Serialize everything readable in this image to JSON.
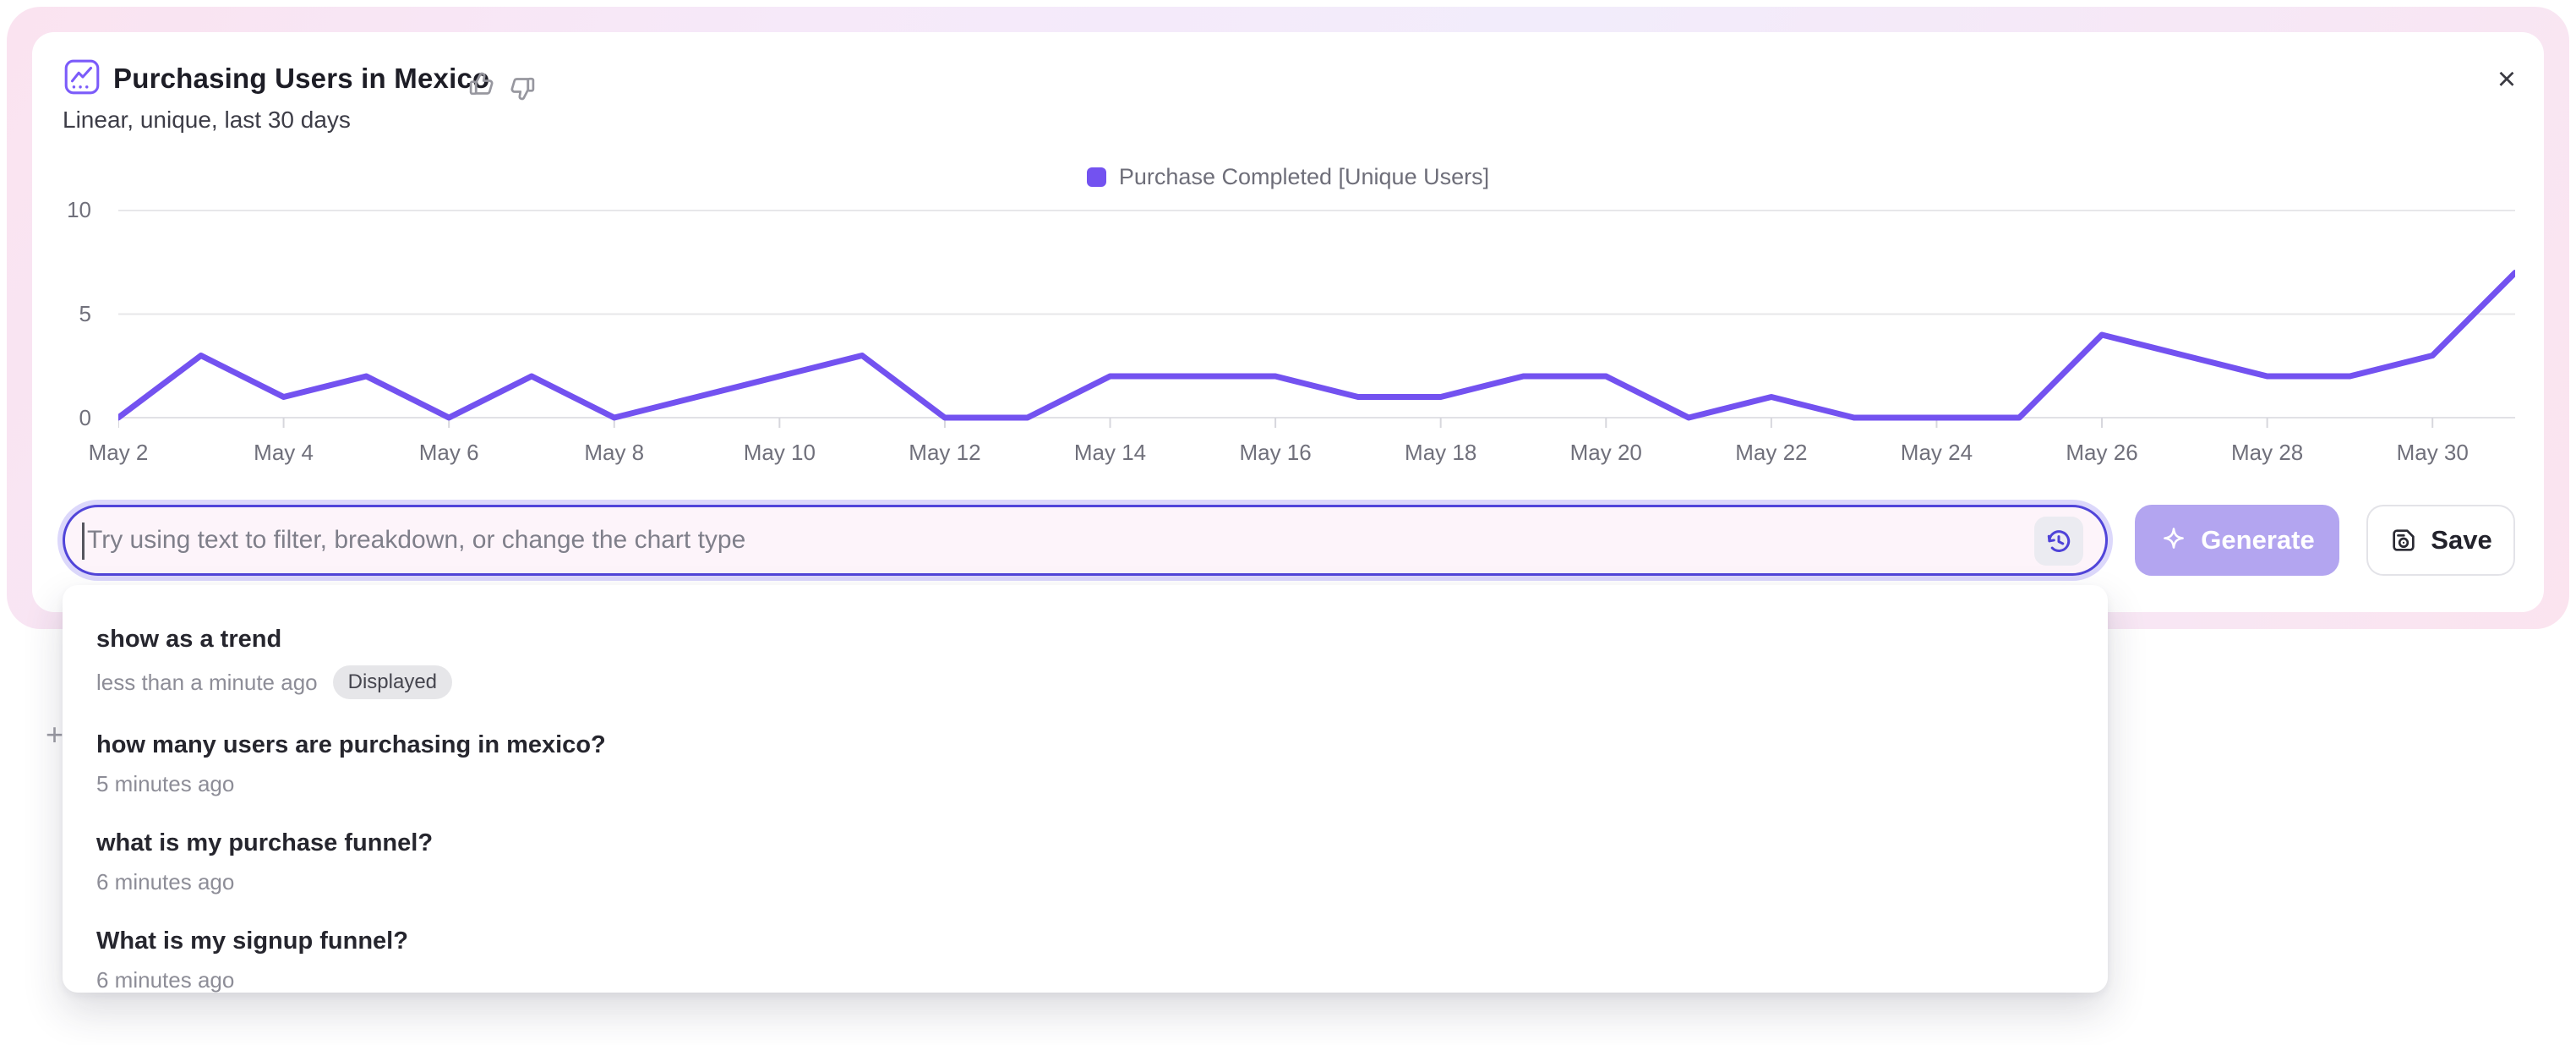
{
  "header": {
    "title": "Purchasing Users in Mexico",
    "subtitle": "Linear, unique, last 30 days",
    "close_label": "×"
  },
  "icons": {
    "header_icon": "line-chart-icon",
    "feedback_positive": "thumbs-up-icon",
    "feedback_negative": "thumbs-down-icon",
    "input_right": "history-icon",
    "generate": "sparkle-icon",
    "save": "save-disk-icon",
    "close": "close-icon"
  },
  "colors": {
    "series": "#7352f0",
    "accent_border": "#5145d9",
    "generate_bg": "#b3a5f0",
    "glow_pink": "#fae3f0",
    "glow_lavender": "#f2ecfb"
  },
  "chart_data": {
    "type": "line",
    "title": "Purchasing Users in Mexico",
    "legend": [
      "Purchase Completed [Unique Users]"
    ],
    "legend_position": "top",
    "grid": true,
    "x": [
      "May 2",
      "May 3",
      "May 4",
      "May 5",
      "May 6",
      "May 7",
      "May 8",
      "May 9",
      "May 10",
      "May 11",
      "May 12",
      "May 13",
      "May 14",
      "May 15",
      "May 16",
      "May 17",
      "May 18",
      "May 19",
      "May 20",
      "May 21",
      "May 22",
      "May 23",
      "May 24",
      "May 25",
      "May 26",
      "May 27",
      "May 28",
      "May 29",
      "May 30",
      "May 31"
    ],
    "series": [
      {
        "name": "Purchase Completed [Unique Users]",
        "values": [
          0,
          3,
          1,
          2,
          0,
          2,
          0,
          1,
          2,
          3,
          0,
          0,
          2,
          2,
          2,
          1,
          1,
          2,
          2,
          0,
          1,
          0,
          0,
          0,
          4,
          3,
          2,
          2,
          3,
          7
        ]
      }
    ],
    "x_tick_labels": [
      "May 2",
      "May 4",
      "May 6",
      "May 8",
      "May 10",
      "May 12",
      "May 14",
      "May 16",
      "May 18",
      "May 20",
      "May 22",
      "May 24",
      "May 26",
      "May 28",
      "May 30"
    ],
    "y_ticks": [
      "0",
      "5",
      "10"
    ],
    "ylim": [
      0,
      10
    ],
    "xlabel": "",
    "ylabel": ""
  },
  "input": {
    "placeholder": "Try using text to filter, breakdown, or change the chart type",
    "value": ""
  },
  "buttons": {
    "generate": "Generate",
    "save": "Save"
  },
  "plus_glyph": "+",
  "history_dropdown": {
    "items": [
      {
        "title": "show as a trend",
        "time": "less than a minute ago",
        "badge": "Displayed"
      },
      {
        "title": "how many users are purchasing in mexico?",
        "time": "5 minutes ago",
        "badge": ""
      },
      {
        "title": "what is my purchase funnel?",
        "time": "6 minutes ago",
        "badge": ""
      },
      {
        "title": "What is my signup funnel?",
        "time": "6 minutes ago",
        "badge": ""
      }
    ]
  }
}
